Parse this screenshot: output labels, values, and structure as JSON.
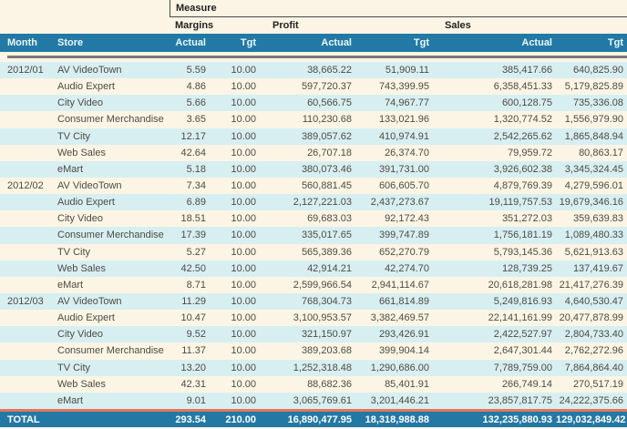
{
  "colors": {
    "background": "#fcf5e5",
    "stripe": "#d8eff2",
    "header_blue": "#2379a5",
    "header_text": "#eaf8fd",
    "total_top_border": "#e2765b",
    "separator_gray": "#7a7a7a",
    "data_text": "#4d4b42"
  },
  "table": {
    "measure_label": "Measure",
    "groups": {
      "margins": "Margins",
      "profit": "Profit",
      "sales": "Sales"
    },
    "columns": {
      "month": "Month",
      "store": "Store",
      "margins_actual": "Actual",
      "margins_tgt": "Tgt",
      "profit_actual": "Actual",
      "profit_tgt": "Tgt",
      "sales_actual": "Actual",
      "sales_tgt": "Tgt"
    },
    "rows": [
      {
        "month": "2012/01",
        "store": "AV VideoTown",
        "values": [
          "5.59",
          "10.00",
          "38,665.22",
          "51,909.11",
          "385,417.66",
          "640,825.90"
        ]
      },
      {
        "month": "",
        "store": "Audio Expert",
        "values": [
          "4.86",
          "10.00",
          "597,720.37",
          "743,399.95",
          "6,358,451.33",
          "5,179,825.89"
        ]
      },
      {
        "month": "",
        "store": "City Video",
        "values": [
          "5.66",
          "10.00",
          "60,566.75",
          "74,967.77",
          "600,128.75",
          "735,336.08"
        ]
      },
      {
        "month": "",
        "store": "Consumer Merchandise",
        "values": [
          "3.65",
          "10.00",
          "110,230.68",
          "133,021.96",
          "1,320,774.52",
          "1,556,979.90"
        ]
      },
      {
        "month": "",
        "store": "TV City",
        "values": [
          "12.17",
          "10.00",
          "389,057.62",
          "410,974.91",
          "2,542,265.62",
          "1,865,848.94"
        ]
      },
      {
        "month": "",
        "store": "Web Sales",
        "values": [
          "42.64",
          "10.00",
          "26,707.18",
          "26,374.70",
          "79,959.72",
          "80,863.17"
        ]
      },
      {
        "month": "",
        "store": "eMart",
        "values": [
          "5.18",
          "10.00",
          "380,073.46",
          "391,731.00",
          "3,926,602.38",
          "3,345,324.45"
        ]
      },
      {
        "month": "2012/02",
        "store": "AV VideoTown",
        "values": [
          "7.34",
          "10.00",
          "560,881.45",
          "606,605.70",
          "4,879,769.39",
          "4,279,596.01"
        ]
      },
      {
        "month": "",
        "store": "Audio Expert",
        "values": [
          "6.89",
          "10.00",
          "2,127,221.03",
          "2,437,273.67",
          "19,119,757.53",
          "19,679,346.16"
        ]
      },
      {
        "month": "",
        "store": "City Video",
        "values": [
          "18.51",
          "10.00",
          "69,683.03",
          "92,172.43",
          "351,272.03",
          "359,639.83"
        ]
      },
      {
        "month": "",
        "store": "Consumer Merchandise",
        "values": [
          "17.39",
          "10.00",
          "335,017.65",
          "399,747.89",
          "1,756,181.19",
          "1,089,480.33"
        ]
      },
      {
        "month": "",
        "store": "TV City",
        "values": [
          "5.27",
          "10.00",
          "565,389.36",
          "652,270.79",
          "5,793,145.36",
          "5,621,913.63"
        ]
      },
      {
        "month": "",
        "store": "Web Sales",
        "values": [
          "42.50",
          "10.00",
          "42,914.21",
          "42,274.70",
          "128,739.25",
          "137,419.67"
        ]
      },
      {
        "month": "",
        "store": "eMart",
        "values": [
          "8.71",
          "10.00",
          "2,599,966.54",
          "2,941,114.67",
          "20,618,281.98",
          "21,417,276.39"
        ]
      },
      {
        "month": "2012/03",
        "store": "AV VideoTown",
        "values": [
          "11.29",
          "10.00",
          "768,304.73",
          "661,814.89",
          "5,249,816.93",
          "4,640,530.47"
        ]
      },
      {
        "month": "",
        "store": "Audio Expert",
        "values": [
          "10.47",
          "10.00",
          "3,100,953.57",
          "3,382,469.57",
          "22,141,161.99",
          "20,477,878.99"
        ]
      },
      {
        "month": "",
        "store": "City Video",
        "values": [
          "9.52",
          "10.00",
          "321,150.97",
          "293,426.91",
          "2,422,527.97",
          "2,804,733.40"
        ]
      },
      {
        "month": "",
        "store": "Consumer Merchandise",
        "values": [
          "11.37",
          "10.00",
          "389,203.68",
          "399,904.14",
          "2,647,301.44",
          "2,762,272.96"
        ]
      },
      {
        "month": "",
        "store": "TV City",
        "values": [
          "13.20",
          "10.00",
          "1,252,318.48",
          "1,290,686.00",
          "7,789,759.00",
          "7,864,864.40"
        ]
      },
      {
        "month": "",
        "store": "Web Sales",
        "values": [
          "42.31",
          "10.00",
          "88,682.36",
          "85,401.91",
          "266,749.14",
          "270,517.19"
        ]
      },
      {
        "month": "",
        "store": "eMart",
        "values": [
          "9.01",
          "10.00",
          "3,065,769.61",
          "3,201,446.21",
          "23,857,817.75",
          "24,222,375.66"
        ]
      }
    ],
    "total": {
      "label": "TOTAL",
      "values": [
        "293.54",
        "210.00",
        "16,890,477.95",
        "18,318,988.88",
        "132,235,880.93",
        "129,032,849.42"
      ]
    }
  }
}
